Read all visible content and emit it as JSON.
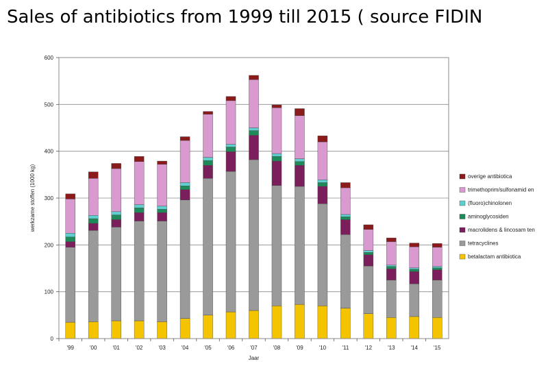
{
  "page": {
    "title": "Sales of antibiotics from 1999 till 2015 ( source FIDIN"
  },
  "chart_data": {
    "type": "bar",
    "stacked": true,
    "categories": [
      "'99",
      "'00",
      "'01",
      "'02",
      "'03",
      "'04",
      "'05",
      "'06",
      "'07",
      "'08",
      "'09",
      "'10",
      "'11",
      "'12",
      "'13",
      "'14",
      "'15"
    ],
    "xlabel": "Jaar",
    "ylabel": "werkzame stoffen (1000 kg)",
    "ylim": [
      0,
      600
    ],
    "yticks": [
      0,
      100,
      200,
      300,
      400,
      500,
      600
    ],
    "grid": true,
    "legend_position": "right",
    "series": [
      {
        "name": "betalactam antibiotica",
        "color": "#f5c400",
        "values": [
          35,
          36,
          38,
          38,
          36,
          43,
          50,
          57,
          60,
          70,
          73,
          70,
          65,
          53,
          45,
          47,
          45
        ]
      },
      {
        "name": "tetracyclines",
        "color": "#9a9a9a",
        "values": [
          160,
          195,
          200,
          213,
          215,
          253,
          292,
          300,
          322,
          257,
          252,
          218,
          157,
          102,
          80,
          70,
          80
        ]
      },
      {
        "name": "macrolidens & lincosam ten",
        "color": "#7a1f5c",
        "values": [
          12,
          15,
          16,
          18,
          18,
          22,
          28,
          42,
          52,
          52,
          45,
          37,
          32,
          24,
          24,
          26,
          22
        ]
      },
      {
        "name": "aminoglycosiden",
        "color": "#1e8a5a",
        "values": [
          10,
          10,
          10,
          10,
          7,
          8,
          10,
          10,
          10,
          10,
          8,
          8,
          6,
          5,
          5,
          5,
          4
        ]
      },
      {
        "name": "(fluoro)chinolonen",
        "color": "#5fcfcf",
        "values": [
          8,
          7,
          7,
          7,
          7,
          7,
          7,
          6,
          6,
          6,
          6,
          6,
          5,
          4,
          3,
          3,
          3
        ]
      },
      {
        "name": "trimethoprim/sulfonamid en",
        "color": "#d99ad0",
        "values": [
          73,
          79,
          92,
          92,
          89,
          90,
          92,
          93,
          103,
          98,
          92,
          81,
          57,
          45,
          50,
          45,
          41
        ]
      },
      {
        "name": "overige antibiotica",
        "color": "#8b1a1a",
        "values": [
          11,
          14,
          11,
          11,
          7,
          8,
          6,
          9,
          9,
          6,
          15,
          13,
          11,
          10,
          8,
          8,
          8
        ]
      }
    ]
  }
}
